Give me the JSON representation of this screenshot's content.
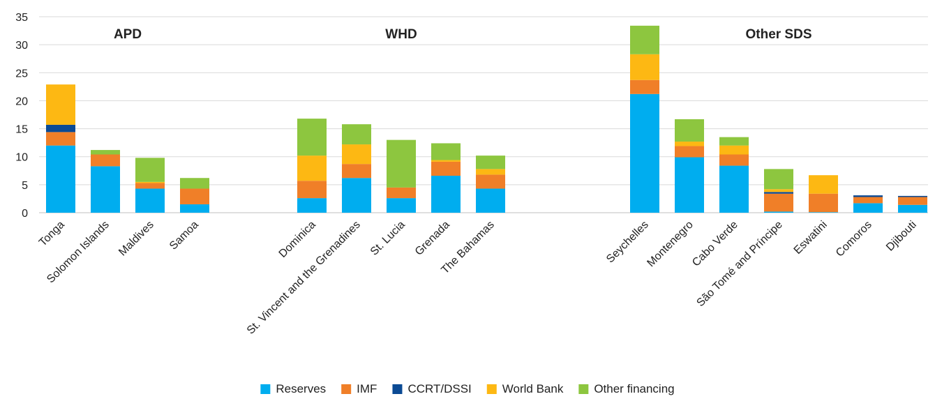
{
  "chart_data": {
    "type": "bar",
    "stacked": true,
    "title": "",
    "xlabel": "",
    "ylabel": "",
    "ylim": [
      0,
      35
    ],
    "yticks": [
      0,
      5,
      10,
      15,
      20,
      25,
      30,
      35
    ],
    "grid": "horizontal",
    "legend_position": "bottom",
    "groups": [
      {
        "label": "APD",
        "categories": [
          "Tonga",
          "Solomon Islands",
          "Maldives",
          "Samoa"
        ]
      },
      {
        "label": "WHD",
        "categories": [
          "Dominica",
          "St. Vincent and the Grenadines",
          "St. Lucia",
          "Grenada",
          "The Bahamas"
        ]
      },
      {
        "label": "Other SDS",
        "categories": [
          "Seychelles",
          "Montenegro",
          "Cabo Verde",
          "São Tomé and Príncipe",
          "Eswatini",
          "Comoros",
          "Djibouti"
        ]
      }
    ],
    "categories": [
      "Tonga",
      "Solomon Islands",
      "Maldives",
      "Samoa",
      "Dominica",
      "St. Vincent and the Grenadines",
      "St. Lucia",
      "Grenada",
      "The Bahamas",
      "Seychelles",
      "Montenegro",
      "Cabo Verde",
      "São Tomé and Príncipe",
      "Eswatini",
      "Comoros",
      "Djibouti"
    ],
    "series": [
      {
        "name": "Reserves",
        "color": "#00ADEF",
        "values": [
          12.0,
          8.3,
          4.3,
          1.5,
          2.6,
          6.2,
          2.6,
          6.6,
          4.3,
          21.2,
          9.9,
          8.4,
          0.2,
          0.1,
          1.7,
          1.4
        ]
      },
      {
        "name": "IMF",
        "color": "#F07F28",
        "values": [
          2.4,
          2.1,
          1.0,
          2.8,
          3.1,
          2.5,
          1.9,
          2.5,
          2.5,
          2.5,
          2.0,
          2.0,
          3.2,
          3.3,
          1.1,
          1.4
        ]
      },
      {
        "name": "CCRT/DSSI",
        "color": "#0B4A94",
        "values": [
          1.3,
          0.0,
          0.0,
          0.0,
          0.0,
          0.0,
          0.0,
          0.0,
          0.0,
          0.0,
          0.0,
          0.0,
          0.3,
          0.0,
          0.3,
          0.2
        ]
      },
      {
        "name": "World Bank",
        "color": "#FDB813",
        "values": [
          7.2,
          0.0,
          0.2,
          0.0,
          4.5,
          3.5,
          0.0,
          0.3,
          1.0,
          4.6,
          0.8,
          1.6,
          0.5,
          3.3,
          0.0,
          0.0
        ]
      },
      {
        "name": "Other financing",
        "color": "#8DC63F",
        "values": [
          0.0,
          0.8,
          4.3,
          1.9,
          6.6,
          3.6,
          8.5,
          3.0,
          2.4,
          5.1,
          4.0,
          1.5,
          3.6,
          0.0,
          0.0,
          0.0
        ]
      }
    ]
  }
}
